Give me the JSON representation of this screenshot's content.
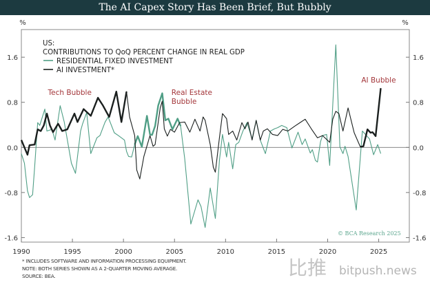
{
  "title": "The AI Capex Story Has Been Brief, But Bubbly",
  "chart_data": {
    "type": "line",
    "title": "The AI Capex Story Has Been Brief, But Bubbly",
    "subtitle_lines": [
      "US:",
      "CONTRIBUTIONS TO QoQ PERCENT CHANGE IN REAL GDP"
    ],
    "ylabel_left": "%",
    "ylabel_right": "%",
    "xlim": [
      1990,
      2028
    ],
    "ylim": [
      -1.68,
      2.09
    ],
    "x_ticks": [
      1990,
      1995,
      2000,
      2005,
      2010,
      2015,
      2020,
      2025
    ],
    "x_tick_labels": [
      "1990",
      "1995",
      "2000",
      "2005",
      "2010",
      "2015",
      "2020",
      "2025"
    ],
    "y_ticks": [
      1.6,
      0.8,
      0.0,
      -0.8,
      -1.6
    ],
    "y_tick_labels": [
      "1.6",
      "0.8",
      "0.0",
      "-0.8",
      "-1.6"
    ],
    "grid": false,
    "zero_line": true,
    "legend_position": "top-left",
    "series": [
      {
        "name": "RESIDENTIAL FIXED INVESTMENT",
        "color": "#4f9e85",
        "highlight_range": [
          2000.9,
          2005.6
        ],
        "x": [
          1990.0,
          1990.3,
          1990.6,
          1990.8,
          1991.1,
          1991.3,
          1991.6,
          1991.8,
          1992.3,
          1992.5,
          1993.0,
          1993.3,
          1993.8,
          1994.2,
          1994.9,
          1995.3,
          1995.8,
          1996.0,
          1996.4,
          1996.8,
          1997.4,
          1997.7,
          1998.2,
          1998.5,
          1999.1,
          1999.5,
          2000.1,
          2000.3,
          2000.5,
          2000.8,
          2001.1,
          2001.4,
          2001.8,
          2002.3,
          2002.6,
          2002.8,
          2003.1,
          2003.4,
          2003.8,
          2004.1,
          2004.4,
          2004.8,
          2005.3,
          2005.6,
          2006.0,
          2006.6,
          2007.3,
          2007.6,
          2008.0,
          2008.5,
          2009.0,
          2009.4,
          2009.7,
          2010.1,
          2010.3,
          2010.7,
          2011.0,
          2011.3,
          2011.7,
          2012.1,
          2012.6,
          2013.0,
          2013.4,
          2013.9,
          2014.4,
          2014.8,
          2015.1,
          2015.5,
          2016.0,
          2016.5,
          2017.1,
          2017.5,
          2017.8,
          2018.3,
          2018.5,
          2018.8,
          2019.0,
          2019.3,
          2019.5,
          2019.9,
          2020.2,
          2020.8,
          2021.2,
          2021.5,
          2021.7,
          2022.0,
          2022.8,
          2023.4,
          2024.1,
          2024.5,
          2024.9,
          2025.2
        ],
        "y": [
          -0.11,
          -0.28,
          -0.77,
          -0.89,
          -0.84,
          -0.35,
          0.44,
          0.39,
          0.68,
          0.29,
          0.32,
          0.13,
          0.74,
          0.45,
          -0.28,
          -0.46,
          0.29,
          0.42,
          0.62,
          -0.11,
          0.17,
          0.21,
          0.45,
          0.54,
          0.26,
          0.21,
          0.13,
          -0.07,
          -0.16,
          -0.17,
          0.05,
          0.2,
          0.01,
          0.56,
          0.23,
          0.22,
          0.38,
          0.74,
          0.96,
          0.48,
          0.51,
          0.32,
          0.51,
          0.38,
          -0.2,
          -1.36,
          -0.93,
          -1.05,
          -1.42,
          -0.72,
          -1.26,
          -0.23,
          0.23,
          -0.17,
          0.09,
          -0.38,
          0.05,
          0.09,
          0.29,
          0.44,
          0.15,
          0.48,
          0.13,
          -0.11,
          0.29,
          0.33,
          0.35,
          0.39,
          0.35,
          -0.01,
          0.27,
          0.05,
          0.15,
          -0.1,
          -0.04,
          -0.23,
          -0.26,
          0.1,
          0.21,
          0.23,
          -0.32,
          1.82,
          0.01,
          -0.11,
          0.02,
          -0.16,
          -1.11,
          0.29,
          0.15,
          -0.13,
          0.05,
          -0.11
        ]
      },
      {
        "name": "AI INVESTMENT*",
        "color": "#1a1f1e",
        "highlight_ranges": [
          [
            1990.0,
            2000.3
          ],
          [
            2023.2,
            2025.2
          ]
        ],
        "x": [
          1990.0,
          1990.6,
          1990.8,
          1991.3,
          1991.6,
          1991.9,
          1992.2,
          1992.5,
          1992.8,
          1993.1,
          1993.6,
          1994.0,
          1994.5,
          1995.2,
          1995.5,
          1996.1,
          1996.8,
          1997.5,
          1998.0,
          1998.6,
          1999.3,
          1999.8,
          2000.3,
          2000.6,
          2001.1,
          2001.3,
          2001.6,
          2002.0,
          2002.6,
          2002.9,
          2003.1,
          2003.6,
          2003.8,
          2004.0,
          2004.3,
          2004.6,
          2005.0,
          2005.5,
          2006.0,
          2006.5,
          2007.0,
          2007.5,
          2007.8,
          2008.0,
          2008.5,
          2008.8,
          2009.0,
          2009.4,
          2009.7,
          2010.1,
          2010.3,
          2010.7,
          2011.1,
          2011.6,
          2011.9,
          2012.2,
          2012.6,
          2013.0,
          2013.4,
          2013.7,
          2014.1,
          2014.6,
          2015.1,
          2015.6,
          2016.1,
          2016.8,
          2017.3,
          2017.8,
          2018.4,
          2019.0,
          2019.5,
          2020.2,
          2020.5,
          2020.8,
          2021.1,
          2021.5,
          2022.0,
          2022.6,
          2023.2,
          2023.5,
          2023.9,
          2024.2,
          2024.4,
          2024.7,
          2025.2
        ],
        "y": [
          0.13,
          -0.13,
          0.04,
          0.05,
          0.32,
          0.29,
          0.39,
          0.6,
          0.39,
          0.27,
          0.42,
          0.29,
          0.32,
          0.6,
          0.45,
          0.68,
          0.56,
          0.88,
          0.74,
          0.54,
          0.99,
          0.45,
          0.99,
          0.54,
          0.21,
          -0.4,
          -0.56,
          -0.16,
          0.21,
          0.02,
          0.05,
          0.7,
          0.82,
          0.33,
          0.2,
          0.32,
          0.27,
          0.44,
          0.45,
          0.27,
          0.5,
          0.29,
          0.54,
          0.48,
          0.05,
          -0.35,
          -0.44,
          0.17,
          0.6,
          0.51,
          0.23,
          0.29,
          0.13,
          0.44,
          0.33,
          0.45,
          0.13,
          0.48,
          0.13,
          0.29,
          0.33,
          0.23,
          0.21,
          0.32,
          0.29,
          0.38,
          0.44,
          0.5,
          0.33,
          0.17,
          0.21,
          0.09,
          0.5,
          0.64,
          0.6,
          0.29,
          0.7,
          0.26,
          0.01,
          0.02,
          0.32,
          0.26,
          0.27,
          0.2,
          1.05
        ]
      }
    ],
    "annotations": [
      {
        "text": "Tech Bubble",
        "x": 1992.6,
        "y": 0.93
      },
      {
        "text": "Real Estate",
        "x": 2004.7,
        "y": 0.93
      },
      {
        "text": "Bubble",
        "x": 2004.7,
        "y": 0.77
      },
      {
        "text": "AI Bubble",
        "x": 2023.3,
        "y": 1.15
      }
    ]
  },
  "legend": {
    "region": "US:",
    "subtitle": "CONTRIBUTIONS TO QoQ PERCENT CHANGE IN REAL GDP",
    "items": [
      "RESIDENTIAL FIXED INVESTMENT",
      "AI INVESTMENT*"
    ]
  },
  "footnotes": [
    "*  INCLUDES SOFTWARE AND INFORMATION PROCESSING EQUIPMENT.",
    "NOTE: BOTH SERIES SHOWN AS A 2-QUARTER MOVING AVERAGE.",
    "SOURCE: BEA."
  ],
  "copyright": "© BCA Research 2025",
  "watermark": {
    "cn": "比推",
    "site": "bitpush.news"
  }
}
